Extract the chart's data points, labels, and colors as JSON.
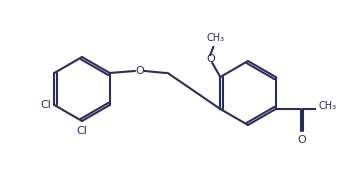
{
  "background_color": "#ffffff",
  "line_color": "#2d2d5a",
  "line_width": 1.5,
  "label_color": "#2d2d5a",
  "font_size": 8,
  "atoms": {
    "Cl1_label": "Cl",
    "Cl2_label": "Cl",
    "O1_label": "O",
    "O2_label": "O",
    "O3_label": "O",
    "methoxy_label": "OCH₃",
    "acetyl_label": "CH₃"
  }
}
